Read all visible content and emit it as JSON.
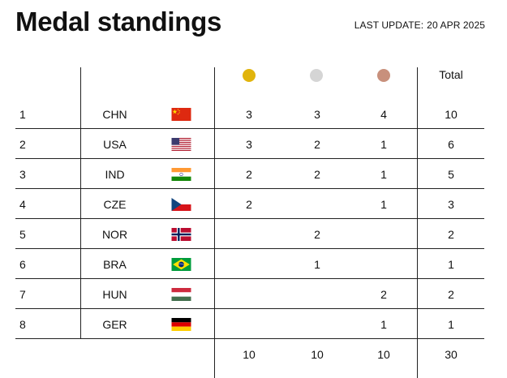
{
  "header": {
    "title": "Medal standings",
    "update_label": "LAST UPDATE:",
    "update_date": "20 APR 2025"
  },
  "table": {
    "columns": {
      "gold_icon": "gold-medal-icon",
      "silver_icon": "silver-medal-icon",
      "bronze_icon": "bronze-medal-icon",
      "total": "Total"
    },
    "medal_colors": {
      "gold": "#E1B40C",
      "silver": "#D5D5D5",
      "bronze": "#C8907C"
    },
    "rows": [
      {
        "rank": "1",
        "code": "CHN",
        "flag": "china-flag-icon",
        "gold": "3",
        "silver": "3",
        "bronze": "4",
        "total": "10"
      },
      {
        "rank": "2",
        "code": "USA",
        "flag": "usa-flag-icon",
        "gold": "3",
        "silver": "2",
        "bronze": "1",
        "total": "6"
      },
      {
        "rank": "3",
        "code": "IND",
        "flag": "india-flag-icon",
        "gold": "2",
        "silver": "2",
        "bronze": "1",
        "total": "5"
      },
      {
        "rank": "4",
        "code": "CZE",
        "flag": "czech-flag-icon",
        "gold": "2",
        "silver": "",
        "bronze": "1",
        "total": "3"
      },
      {
        "rank": "5",
        "code": "NOR",
        "flag": "norway-flag-icon",
        "gold": "",
        "silver": "2",
        "bronze": "",
        "total": "2"
      },
      {
        "rank": "6",
        "code": "BRA",
        "flag": "brazil-flag-icon",
        "gold": "",
        "silver": "1",
        "bronze": "",
        "total": "1"
      },
      {
        "rank": "7",
        "code": "HUN",
        "flag": "hungary-flag-icon",
        "gold": "",
        "silver": "",
        "bronze": "2",
        "total": "2"
      },
      {
        "rank": "8",
        "code": "GER",
        "flag": "germany-flag-icon",
        "gold": "",
        "silver": "",
        "bronze": "1",
        "total": "1"
      }
    ],
    "totals": {
      "gold": "10",
      "silver": "10",
      "bronze": "10",
      "total": "30"
    }
  }
}
